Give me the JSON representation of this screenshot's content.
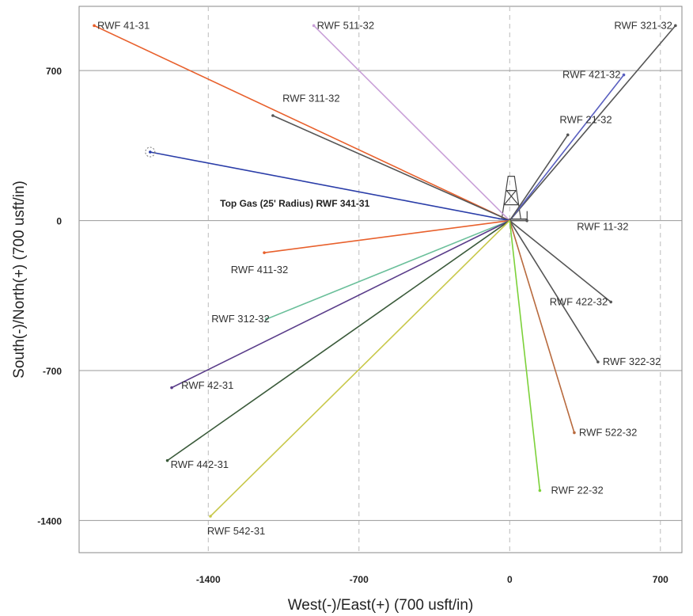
{
  "chart_data": {
    "type": "line",
    "title": "",
    "xlabel": "West(-)/East(+) (700 usft/in)",
    "ylabel": "South(-)/North(+) (700 usft/in)",
    "xlim": [
      -2000,
      800
    ],
    "ylim": [
      -1550,
      1000
    ],
    "x_ticks": [
      -1400,
      -700,
      0,
      700
    ],
    "x_tick_labels": [
      "-1400",
      "-700",
      "0",
      "700"
    ],
    "y_ticks": [
      700,
      0,
      -700,
      -1400
    ],
    "y_tick_labels": [
      "700",
      "0",
      "-700",
      "-1400"
    ],
    "grid": true,
    "series": [
      {
        "name": "RWF 41-31",
        "color": "#e8602c",
        "x": [
          0,
          -1930
        ],
        "y": [
          0,
          910
        ],
        "label_at": [
          -1930,
          910
        ]
      },
      {
        "name": "RWF 511-32",
        "color": "#c9a0d8",
        "x": [
          0,
          -910
        ],
        "y": [
          0,
          910
        ],
        "label_at": [
          -910,
          910
        ]
      },
      {
        "name": "RWF 311-32",
        "color": "#555555",
        "x": [
          0,
          -1100
        ],
        "y": [
          0,
          490
        ],
        "label_at": [
          -1070,
          570
        ]
      },
      {
        "name": "RWF 321-32",
        "color": "#555555",
        "x": [
          0,
          770
        ],
        "y": [
          0,
          910
        ],
        "label_at": [
          770,
          910
        ]
      },
      {
        "name": "RWF 421-32",
        "color": "#5a60c0",
        "x": [
          0,
          530
        ],
        "y": [
          0,
          680
        ],
        "label_at": [
          530,
          680
        ]
      },
      {
        "name": "RWF 21-32",
        "color": "#555555",
        "x": [
          0,
          270
        ],
        "y": [
          0,
          400
        ],
        "label_at": [
          210,
          470
        ]
      },
      {
        "name": "Top Gas (25' Radius) RWF 341-31",
        "color": "#2a3da8",
        "x": [
          0,
          -1670
        ],
        "y": [
          0,
          320
        ],
        "label_at": [
          -1360,
          80
        ]
      },
      {
        "name": "RWF 11-32",
        "color": "#555555",
        "x": [
          0,
          80
        ],
        "y": [
          0,
          0
        ],
        "label_at": [
          290,
          -30
        ]
      },
      {
        "name": "RWF 411-32",
        "color": "#e8602c",
        "x": [
          0,
          -1140
        ],
        "y": [
          0,
          -150
        ],
        "label_at": [
          -1310,
          -230
        ]
      },
      {
        "name": "RWF 422-32",
        "color": "#555555",
        "x": [
          0,
          470
        ],
        "y": [
          0,
          -380
        ],
        "label_at": [
          470,
          -380
        ]
      },
      {
        "name": "RWF 312-32",
        "color": "#6abf9a",
        "x": [
          0,
          -1130
        ],
        "y": [
          0,
          -460
        ],
        "label_at": [
          -1400,
          -460
        ]
      },
      {
        "name": "RWF 322-32",
        "color": "#555555",
        "x": [
          0,
          410
        ],
        "y": [
          0,
          -660
        ],
        "label_at": [
          410,
          -660
        ]
      },
      {
        "name": "RWF 42-31",
        "color": "#5a3d8a",
        "x": [
          0,
          -1570
        ],
        "y": [
          0,
          -780
        ],
        "label_at": [
          -1540,
          -770
        ]
      },
      {
        "name": "RWF 522-32",
        "color": "#b86a3e",
        "x": [
          0,
          300
        ],
        "y": [
          0,
          -990
        ],
        "label_at": [
          300,
          -990
        ]
      },
      {
        "name": "RWF 442-31",
        "color": "#3a5a3a",
        "x": [
          0,
          -1590
        ],
        "y": [
          0,
          -1120
        ],
        "label_at": [
          -1590,
          -1140
        ]
      },
      {
        "name": "RWF 22-32",
        "color": "#7cd13a",
        "x": [
          0,
          140
        ],
        "y": [
          0,
          -1260
        ],
        "label_at": [
          170,
          -1260
        ]
      },
      {
        "name": "RWF 542-31",
        "color": "#c8c84a",
        "x": [
          0,
          -1390
        ],
        "y": [
          0,
          -1380
        ],
        "label_at": [
          -1420,
          -1450
        ]
      }
    ]
  }
}
